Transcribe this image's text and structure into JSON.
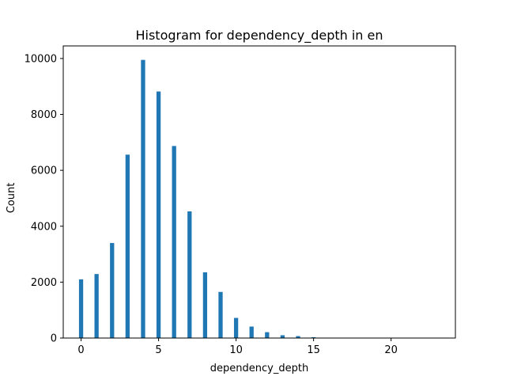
{
  "chart_data": {
    "type": "bar",
    "title": "Histogram for dependency_depth in en",
    "xlabel": "dependency_depth",
    "ylabel": "Count",
    "xlim": [
      -1.15,
      24.15
    ],
    "ylim": [
      0,
      10450
    ],
    "xticks": [
      0,
      5,
      10,
      15,
      20
    ],
    "yticks": [
      0,
      2000,
      4000,
      6000,
      8000,
      10000
    ],
    "bar_width": 0.27,
    "bar_color": "#1f77b4",
    "grid": false,
    "series": [
      {
        "x": [
          0,
          1,
          2,
          3,
          4,
          5,
          6,
          7,
          8,
          9,
          10,
          11,
          12,
          13,
          14,
          15,
          16,
          17,
          18,
          19,
          20,
          21,
          22,
          23
        ],
        "values": [
          2100,
          2290,
          3400,
          6560,
          9950,
          8820,
          6870,
          4530,
          2350,
          1650,
          720,
          410,
          210,
          100,
          70,
          30,
          12,
          8,
          5,
          3,
          2,
          1,
          1,
          1
        ]
      }
    ]
  }
}
